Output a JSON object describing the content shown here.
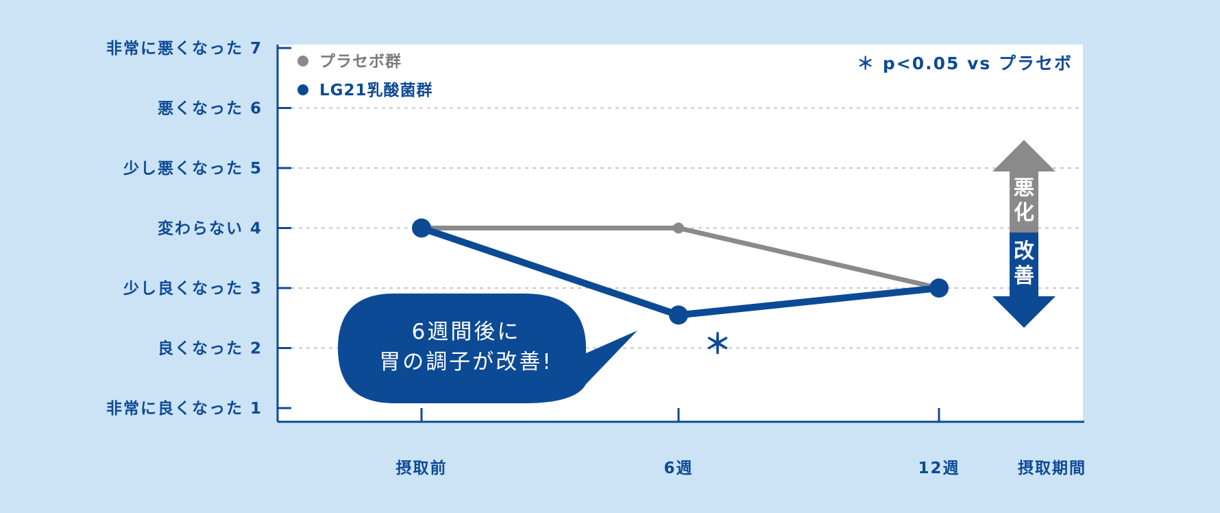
{
  "chart_data": {
    "type": "line",
    "x": [
      "摂取前",
      "6週",
      "12週"
    ],
    "xlabel": "摂取期間",
    "ylim": [
      1,
      7
    ],
    "y_ticks": [
      {
        "value": 7,
        "label": "非常に悪くなった 7"
      },
      {
        "value": 6,
        "label": "悪くなった 6"
      },
      {
        "value": 5,
        "label": "少し悪くなった 5"
      },
      {
        "value": 4,
        "label": "変わらない 4"
      },
      {
        "value": 3,
        "label": "少し良くなった 3"
      },
      {
        "value": 2,
        "label": "良くなった 2"
      },
      {
        "value": 1,
        "label": "非常に良くなった 1"
      }
    ],
    "grid": true,
    "legend_position": "top-left",
    "series": [
      {
        "name": "プラセボ群",
        "color": "#8a8a8a",
        "values": [
          4,
          4,
          3
        ]
      },
      {
        "name": "LG21乳酸菌群",
        "color": "#0d4a95",
        "values": [
          4,
          2.55,
          3
        ]
      }
    ],
    "significance_note": "＊ p<0.05 vs プラセボ",
    "significance_marker": "＊",
    "callout": [
      "6週間後に",
      "胃の調子が改善!"
    ],
    "arrow_up_label": [
      "悪",
      "化"
    ],
    "arrow_down_label": [
      "改",
      "善"
    ]
  }
}
